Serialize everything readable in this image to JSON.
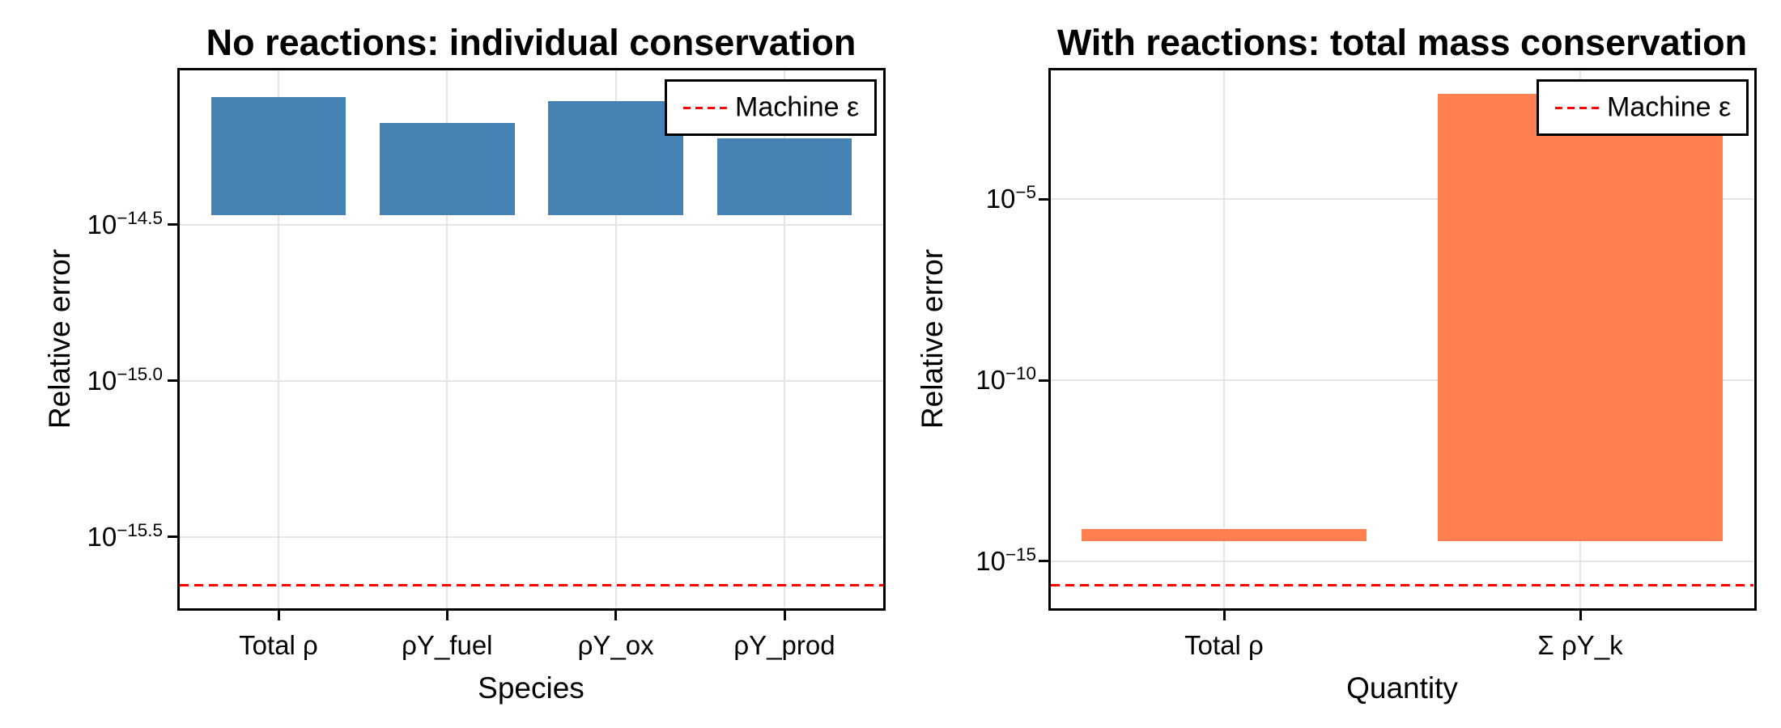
{
  "figure": {
    "background": "#ffffff",
    "text_color": "#000000",
    "grid_color": "#e4e4e4",
    "frame_color": "#000000"
  },
  "chart_data": [
    {
      "type": "bar",
      "title": "No reactions: individual conservation",
      "xlabel": "Species",
      "ylabel": "Relative error",
      "yscale": "log10",
      "grid": true,
      "legend_position": "top-right",
      "legend_label": "Machine ε",
      "bar_color": "#4682B4",
      "categories": [
        "Total ρ",
        "ρY_fuel",
        "ρY_ox",
        "ρY_prod"
      ],
      "values": [
        8.1e-15,
        6.7e-15,
        7.9e-15,
        6e-15
      ],
      "bar_baseline": 3.4e-15,
      "reference_line": {
        "label": "Machine ε",
        "value": 2.22e-16,
        "color": "#ff0000",
        "style": "dashed"
      },
      "ylim_exponents": [
        -15.731,
        -14.0
      ],
      "yticks": [
        {
          "exp": -14.5,
          "label": "−14.5"
        },
        {
          "exp": -15.0,
          "label": "−15.0"
        },
        {
          "exp": -15.5,
          "label": "−15.5"
        }
      ]
    },
    {
      "type": "bar",
      "title": "With reactions: total mass conservation",
      "xlabel": "Quantity",
      "ylabel": "Relative error",
      "yscale": "log10",
      "grid": true,
      "legend_position": "top-right",
      "legend_label": "Machine ε",
      "bar_color": "#FF7F50",
      "categories": [
        "Total ρ",
        "Σ ρY_k"
      ],
      "values": [
        7.9e-15,
        0.0081
      ],
      "bar_baseline": 3.7e-15,
      "reference_line": {
        "label": "Machine ε",
        "value": 2.22e-16,
        "color": "#ff0000",
        "style": "dashed"
      },
      "ylim_exponents": [
        -16.317,
        -1.406
      ],
      "yticks": [
        {
          "exp": -5,
          "label": "−5"
        },
        {
          "exp": -10,
          "label": "−10"
        },
        {
          "exp": -15,
          "label": "−15"
        }
      ]
    }
  ]
}
